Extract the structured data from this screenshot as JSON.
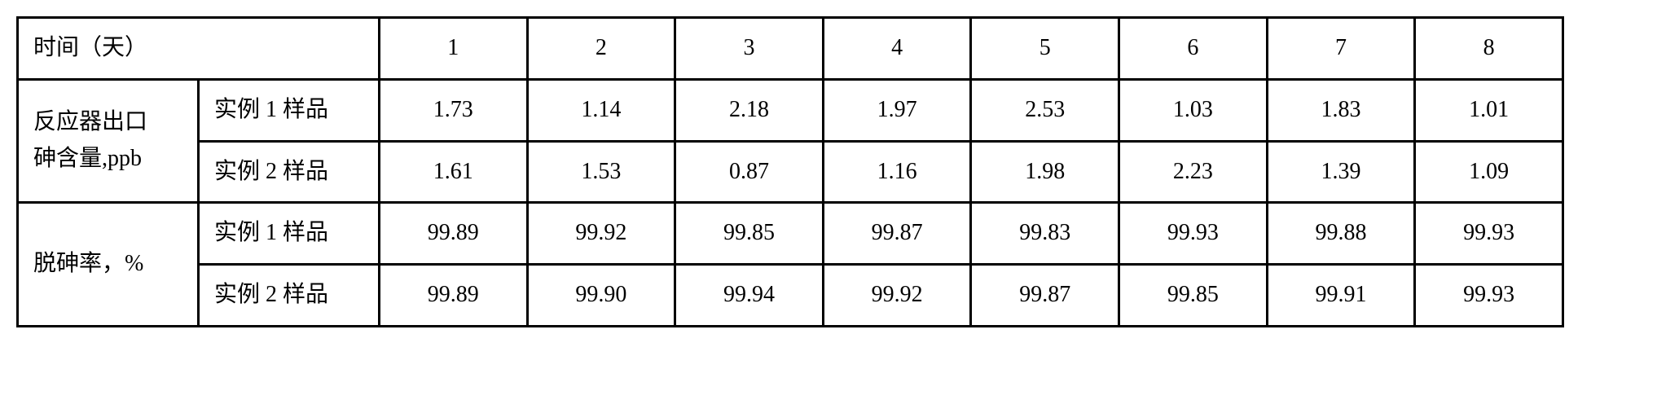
{
  "table": {
    "header": {
      "time_label": "时间（天）",
      "days": [
        "1",
        "2",
        "3",
        "4",
        "5",
        "6",
        "7",
        "8"
      ]
    },
    "section1": {
      "label_line1": "反应器出口",
      "label_line2": "砷含量,ppb",
      "row1_label": "实例 1 样品",
      "row1_values": [
        "1.73",
        "1.14",
        "2.18",
        "1.97",
        "2.53",
        "1.03",
        "1.83",
        "1.01"
      ],
      "row2_label": "实例 2 样品",
      "row2_values": [
        "1.61",
        "1.53",
        "0.87",
        "1.16",
        "1.98",
        "2.23",
        "1.39",
        "1.09"
      ]
    },
    "section2": {
      "label": "脱砷率，%",
      "row1_label": "实例 1 样品",
      "row1_values": [
        "99.89",
        "99.92",
        "99.85",
        "99.87",
        "99.83",
        "99.93",
        "99.88",
        "99.93"
      ],
      "row2_label": "实例 2 样品",
      "row2_values": [
        "99.89",
        "99.90",
        "99.94",
        "99.92",
        "99.87",
        "99.85",
        "99.91",
        "99.93"
      ]
    }
  }
}
